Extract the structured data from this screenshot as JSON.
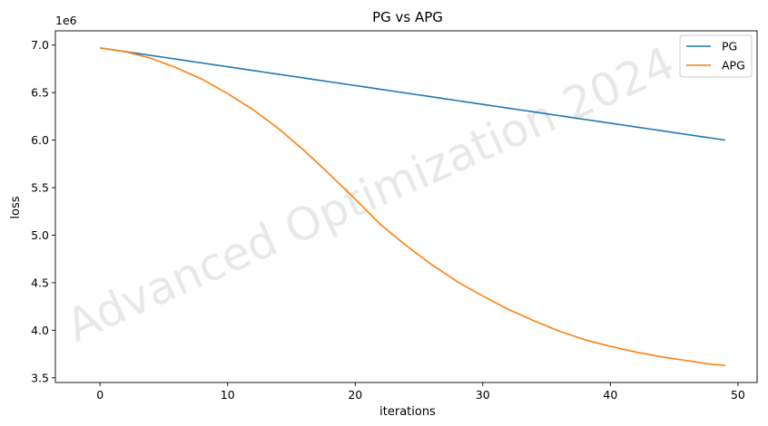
{
  "chart_data": {
    "type": "line",
    "title": "PG vs APG",
    "xlabel": "iterations",
    "ylabel": "loss",
    "y_offset_label": "1e6",
    "xlim": [
      -3.5,
      51.5
    ],
    "ylim": [
      3.45,
      7.15
    ],
    "y_scale_note": "values in units of 1e6",
    "xticks": [
      0,
      10,
      20,
      30,
      40,
      50
    ],
    "xtick_labels": [
      "0",
      "10",
      "20",
      "30",
      "40",
      "50"
    ],
    "yticks": [
      3.5,
      4.0,
      4.5,
      5.0,
      5.5,
      6.0,
      6.5,
      7.0
    ],
    "ytick_labels": [
      "3.5",
      "4.0",
      "4.5",
      "5.0",
      "5.5",
      "6.0",
      "6.5",
      "7.0"
    ],
    "grid": false,
    "legend_position": "top-right",
    "watermark": "Advanced Optimization 2024",
    "series": [
      {
        "name": "PG",
        "color": "#1f77b4",
        "x": [
          0,
          49
        ],
        "y": [
          6.97,
          6.0
        ],
        "shape": "linear"
      },
      {
        "name": "APG",
        "color": "#ff7f0e",
        "x": [
          0,
          2,
          4,
          6,
          8,
          10,
          12,
          14,
          16,
          18,
          20,
          22,
          24,
          26,
          28,
          30,
          32,
          34,
          36,
          38,
          40,
          42,
          44,
          46,
          48,
          49
        ],
        "y": [
          6.97,
          6.93,
          6.86,
          6.76,
          6.64,
          6.49,
          6.32,
          6.12,
          5.89,
          5.64,
          5.38,
          5.11,
          4.89,
          4.69,
          4.51,
          4.36,
          4.22,
          4.1,
          3.99,
          3.9,
          3.83,
          3.77,
          3.72,
          3.68,
          3.64,
          3.63
        ]
      }
    ]
  }
}
